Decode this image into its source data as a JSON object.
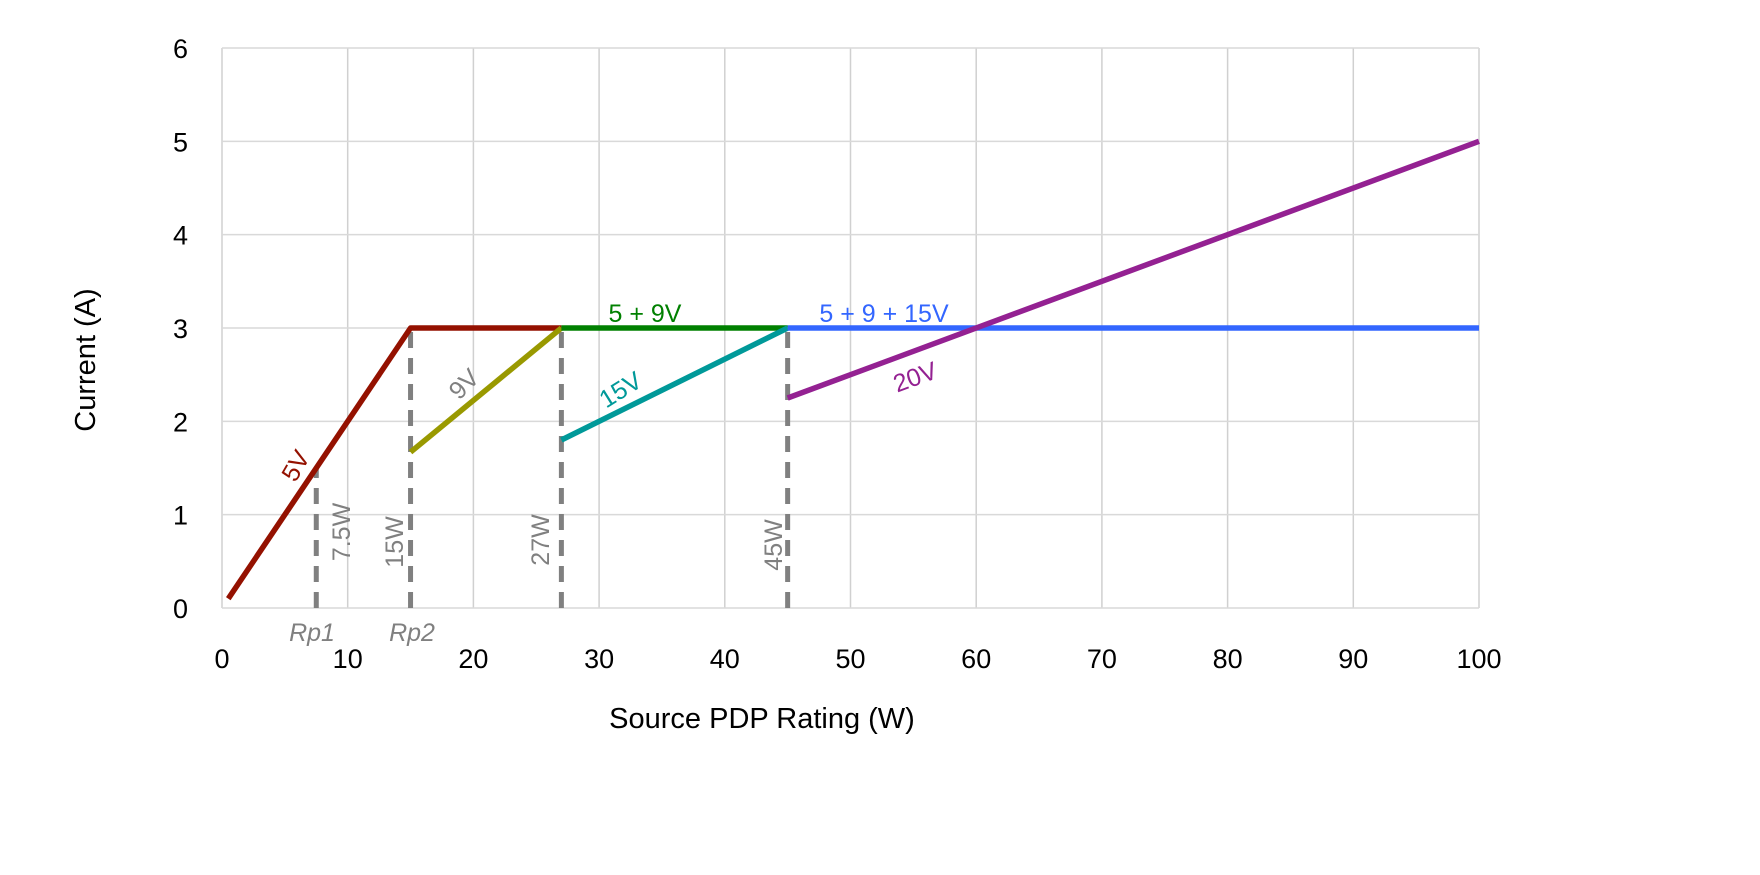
{
  "chart_data": {
    "type": "line",
    "title": "",
    "xlabel": "Source PDP Rating (W)",
    "ylabel": "Current (A)",
    "xlim": [
      0,
      100
    ],
    "ylim": [
      0,
      6
    ],
    "x_ticks": [
      "0",
      "10",
      "20",
      "30",
      "40",
      "50",
      "60",
      "70",
      "80",
      "90",
      "100"
    ],
    "y_ticks": [
      "0",
      "1",
      "2",
      "3",
      "4",
      "5",
      "6"
    ],
    "grid": true,
    "series": [
      {
        "name": "5V",
        "color": "#941100",
        "points": [
          [
            0.5,
            0.1
          ],
          [
            15,
            3
          ],
          [
            27,
            3
          ]
        ]
      },
      {
        "name": "9V",
        "color": "#999900",
        "points": [
          [
            15,
            1.67
          ],
          [
            27,
            3
          ]
        ]
      },
      {
        "name": "5 + 9V",
        "color": "#008000",
        "points": [
          [
            27,
            3
          ],
          [
            45,
            3
          ]
        ]
      },
      {
        "name": "15V",
        "color": "#009999",
        "points": [
          [
            27,
            1.8
          ],
          [
            45,
            3
          ]
        ]
      },
      {
        "name": "5 + 9 + 15V",
        "color": "#3366ff",
        "points": [
          [
            45,
            3
          ],
          [
            100,
            3
          ]
        ]
      },
      {
        "name": "20V",
        "color": "#942192",
        "points": [
          [
            45,
            2.25
          ],
          [
            100,
            5
          ]
        ]
      }
    ],
    "reference_lines": [
      {
        "label": "7.5W",
        "x": 7.5,
        "y_top": 1.5,
        "marker": "Rp1"
      },
      {
        "label": "15W",
        "x": 15,
        "y_top": 3,
        "marker": "Rp2"
      },
      {
        "label": "27W",
        "x": 27,
        "y_top": 3
      },
      {
        "label": "45W",
        "x": 45,
        "y_top": 3
      }
    ],
    "reference_color": "#808080"
  }
}
